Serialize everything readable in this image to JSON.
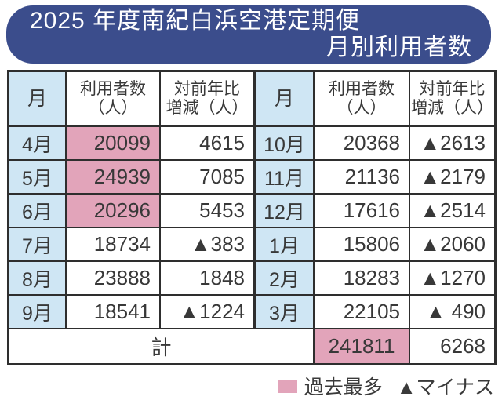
{
  "title": {
    "line1": "2025 年度南紀白浜空港定期便",
    "line2": "月別利用者数"
  },
  "table": {
    "header": {
      "month": "月",
      "users_line1": "利用者数",
      "users_line2": "（人）",
      "change_line1": "対前年比",
      "change_line2": "増減（人）"
    },
    "rows": [
      {
        "m1": "4月",
        "u1": "20099",
        "h1": true,
        "c1": "4615",
        "m2": "10月",
        "u2": "20368",
        "c2": "▲2613"
      },
      {
        "m1": "5月",
        "u1": "24939",
        "h1": true,
        "c1": "7085",
        "m2": "11月",
        "u2": "21136",
        "c2": "▲2179"
      },
      {
        "m1": "6月",
        "u1": "20296",
        "h1": true,
        "c1": "5453",
        "m2": "12月",
        "u2": "17616",
        "c2": "▲2514"
      },
      {
        "m1": "7月",
        "u1": "18734",
        "h1": false,
        "c1": "▲383",
        "m2": "1月",
        "u2": "15806",
        "c2": "▲2060"
      },
      {
        "m1": "8月",
        "u1": "23888",
        "h1": false,
        "c1": "1848",
        "m2": "2月",
        "u2": "18283",
        "c2": "▲1270"
      },
      {
        "m1": "9月",
        "u1": "18541",
        "h1": false,
        "c1": "▲1224",
        "m2": "3月",
        "u2": "22105",
        "c2": "▲ 490"
      }
    ],
    "total": {
      "label": "計",
      "users": "241811",
      "users_highlight": true,
      "change": "6268"
    }
  },
  "legend": {
    "past_record": "過去最多",
    "minus": "▲マイナス"
  },
  "colors": {
    "banner_blue": "#3b4d8c",
    "record_pink": "#e2a4ba",
    "month_light_blue": "#cfe6f4",
    "border": "#2e2e2e"
  },
  "chart_data": {
    "type": "table",
    "title": "2025年度南紀白浜空港定期便 月別利用者数",
    "columns": [
      "月",
      "利用者数（人）",
      "対前年比増減（人）"
    ],
    "rows": [
      [
        "4月",
        20099,
        4615
      ],
      [
        "5月",
        24939,
        7085
      ],
      [
        "6月",
        20296,
        5453
      ],
      [
        "7月",
        18734,
        -383
      ],
      [
        "8月",
        23888,
        1848
      ],
      [
        "9月",
        18541,
        -1224
      ],
      [
        "10月",
        20368,
        -2613
      ],
      [
        "11月",
        21136,
        -2179
      ],
      [
        "12月",
        17616,
        -2514
      ],
      [
        "1月",
        15806,
        -2060
      ],
      [
        "2月",
        18283,
        -1270
      ],
      [
        "3月",
        22105,
        -490
      ]
    ],
    "total": {
      "label": "計",
      "users": 241811,
      "change": 6268
    },
    "record_high_cells": [
      "4月 利用者数",
      "5月 利用者数",
      "6月 利用者数",
      "計 利用者数"
    ],
    "legend": {
      "pink": "過去最多",
      "triangle": "マイナス"
    }
  }
}
